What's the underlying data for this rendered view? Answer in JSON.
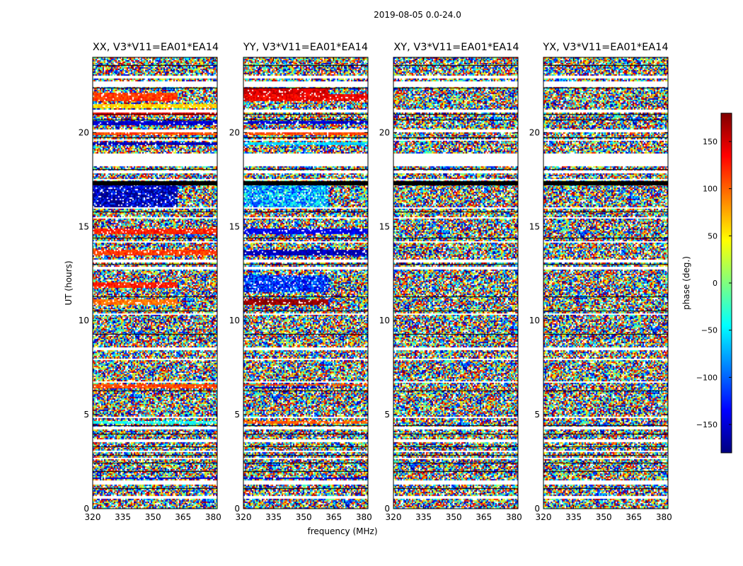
{
  "figure": {
    "suptitle": "2019-08-05 0.0-24.0",
    "xlabel": "frequency (MHz)",
    "ylabel": "UT (hours)"
  },
  "colorbar": {
    "label": "phase (deg.)",
    "range": [
      -180,
      180
    ],
    "ticks": [
      "150",
      "100",
      "50",
      "0",
      "−50",
      "−100",
      "−150"
    ],
    "tick_values": [
      150,
      100,
      50,
      0,
      -50,
      -100,
      -150
    ],
    "colormap": [
      "#00007f",
      "#0000ff",
      "#007fff",
      "#00ffff",
      "#7fff7f",
      "#ffff00",
      "#ff7f00",
      "#ff0000",
      "#7f0000"
    ]
  },
  "chart_data": {
    "type": "heatmap",
    "title": "2019-08-05 0.0-24.0",
    "xlabel": "frequency (MHz)",
    "ylabel": "UT (hours)",
    "xlim": [
      320,
      382
    ],
    "ylim": [
      0,
      24
    ],
    "x_ticks": [
      "320",
      "335",
      "350",
      "365",
      "380"
    ],
    "x_tick_values": [
      320,
      335,
      350,
      365,
      380
    ],
    "y_ticks": [
      "0",
      "5",
      "10",
      "15",
      "20"
    ],
    "y_tick_values": [
      0,
      5,
      10,
      15,
      20
    ],
    "value_label": "phase (deg.)",
    "value_range": [
      -180,
      180
    ],
    "panels": [
      {
        "name": "XX",
        "title": "XX, V3*V11=EA01*EA14",
        "coherent_bands": [
          {
            "t": [
              20.4,
              20.65
            ],
            "phase": -150
          },
          {
            "t": [
              19.85,
              20.0
            ],
            "phase": 110
          },
          {
            "t": [
              19.3,
              19.5
            ],
            "phase": -160
          },
          {
            "t": [
              21.7,
              22.1
            ],
            "phase": 115,
            "f_max": 362
          },
          {
            "t": [
              21.3,
              21.55
            ],
            "phase": 60
          },
          {
            "t": [
              20.9,
              21.05
            ],
            "phase": 140
          },
          {
            "t": [
              16.0,
              17.4
            ],
            "phase": -160,
            "f_max": 362,
            "jitter": 60
          },
          {
            "t": [
              14.6,
              14.9
            ],
            "phase": 125
          },
          {
            "t": [
              13.5,
              13.8
            ],
            "phase": 115
          },
          {
            "t": [
              11.75,
              12.05
            ],
            "phase": 125,
            "f_max": 362
          },
          {
            "t": [
              10.85,
              11.1
            ],
            "phase": 95,
            "f_max": 362
          },
          {
            "t": [
              6.4,
              6.6
            ],
            "phase": 110
          },
          {
            "t": [
              4.55,
              4.7
            ],
            "phase": -40
          },
          {
            "t": [
              1.55,
              1.65
            ],
            "phase": -150
          }
        ]
      },
      {
        "name": "YY",
        "title": "YY, V3*V11=EA01*EA14",
        "coherent_bands": [
          {
            "t": [
              22.05,
              22.35
            ],
            "phase": 150,
            "f_max": 362
          },
          {
            "t": [
              21.7,
              22.05
            ],
            "phase": 140
          },
          {
            "t": [
              20.5,
              20.65
            ],
            "phase": -150
          },
          {
            "t": [
              19.85,
              20.0
            ],
            "phase": 110
          },
          {
            "t": [
              19.3,
              19.5
            ],
            "phase": -60
          },
          {
            "t": [
              16.0,
              17.4
            ],
            "phase": -70,
            "f_max": 362,
            "jitter": 60
          },
          {
            "t": [
              14.6,
              14.9
            ],
            "phase": -140
          },
          {
            "t": [
              13.5,
              13.8
            ],
            "phase": -160
          },
          {
            "t": [
              11.5,
              12.4
            ],
            "phase": -120,
            "f_max": 362,
            "jitter": 50
          },
          {
            "t": [
              10.8,
              11.1
            ],
            "phase": 175,
            "f_max": 362
          },
          {
            "t": [
              6.55,
              6.65
            ],
            "phase": 110
          },
          {
            "t": [
              6.4,
              6.5
            ],
            "phase": -160,
            "f_max": 362
          },
          {
            "t": [
              4.55,
              4.7
            ],
            "phase": 100
          },
          {
            "t": [
              1.55,
              1.65
            ],
            "phase": -150
          }
        ]
      },
      {
        "name": "XY",
        "title": "XY, V3*V11=EA01*EA14",
        "coherent_bands": []
      },
      {
        "name": "YX",
        "title": "YX, V3*V11=EA01*EA14",
        "coherent_bands": []
      }
    ],
    "flagged_gaps_hours": [
      [
        22.9,
        23.05
      ],
      [
        22.45,
        22.7
      ],
      [
        21.1,
        21.2
      ],
      [
        20.05,
        20.15
      ],
      [
        19.55,
        19.65
      ],
      [
        18.2,
        18.9
      ],
      [
        17.85,
        17.95
      ],
      [
        17.45,
        17.55
      ],
      [
        15.95,
        16.05
      ],
      [
        15.4,
        15.5
      ],
      [
        14.15,
        14.25
      ],
      [
        13.1,
        13.25
      ],
      [
        12.75,
        12.85
      ],
      [
        10.3,
        10.4
      ],
      [
        8.45,
        8.55
      ],
      [
        7.9,
        8.0
      ],
      [
        6.7,
        6.8
      ],
      [
        4.8,
        4.9
      ],
      [
        4.25,
        4.35
      ],
      [
        3.55,
        3.65
      ],
      [
        3.0,
        3.1
      ],
      [
        2.6,
        2.7
      ],
      [
        1.3,
        1.5
      ],
      [
        0.55,
        0.65
      ]
    ],
    "dark_lines_hours": [
      23.6,
      22.4,
      21.0,
      20.7,
      19.75,
      18.05,
      17.4,
      17.3,
      15.8,
      14.4,
      13.0,
      11.3,
      10.55,
      9.3,
      6.3,
      4.45,
      4.0,
      3.3,
      2.85,
      2.45,
      2.0,
      1.1
    ]
  }
}
